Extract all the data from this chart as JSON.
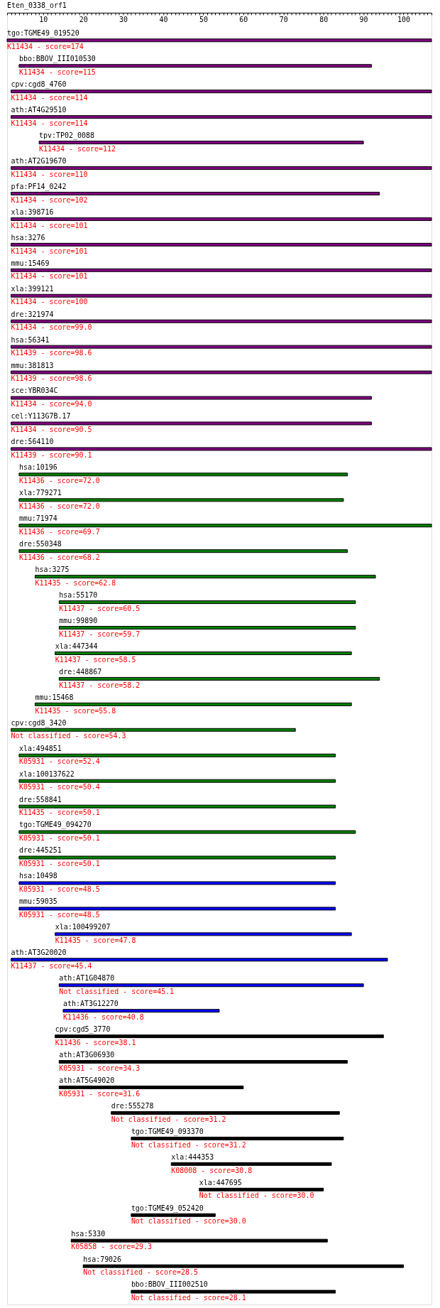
{
  "chart_data": {
    "type": "bar",
    "orientation": "horizontal",
    "title": "Eten_0338_orf1",
    "categories": [
      "tgo:TGME49_019520",
      "bbo:BBOV_III010530",
      "cpv:cgd8_4760",
      "ath:AT4G29510",
      "tpv:TP02_0088",
      "ath:AT2G19670",
      "pfa:PF14_0242",
      "xla:398716",
      "hsa:3276",
      "mmu:15469",
      "xla:399121",
      "dre:321974",
      "hsa:56341",
      "mmu:381813",
      "sce:YBR034C",
      "cel:Y113G7B.17",
      "dre:564110",
      "hsa:10196",
      "xla:779271",
      "mmu:71974",
      "dre:550348",
      "hsa:3275",
      "hsa:55170",
      "mmu:99890",
      "xla:447344",
      "dre:448867",
      "mmu:15468",
      "cpv:cgd8_3420",
      "xla:494851",
      "xla:100137622",
      "dre:558841",
      "tgo:TGME49_094270",
      "dre:445251",
      "hsa:10498",
      "mmu:59035",
      "xla:100499207",
      "ath:AT3G20020",
      "ath:AT1G04870",
      "ath:AT3G12270",
      "cpv:cgd5_3770",
      "ath:AT3G06930",
      "ath:AT5G49020",
      "dre:555278",
      "tgo:TGME49_093370",
      "xla:444353",
      "xla:447695",
      "tgo:TGME49_052420",
      "hsa:5330",
      "hsa:79026",
      "bbo:BBOV_III002510"
    ],
    "base": [
      1,
      4,
      2,
      2,
      9,
      2,
      2,
      2,
      2,
      2,
      2,
      2,
      2,
      2,
      2,
      2,
      2,
      4,
      4,
      4,
      4,
      8,
      14,
      14,
      13,
      14,
      8,
      2,
      4,
      4,
      4,
      4,
      4,
      4,
      4,
      13,
      2,
      14,
      15,
      13,
      14,
      14,
      27,
      32,
      42,
      49,
      32,
      17,
      20,
      32
    ],
    "values": [
      106,
      88,
      105,
      105,
      81,
      105,
      92,
      105,
      105,
      105,
      105,
      105,
      105,
      105,
      90,
      90,
      105,
      82,
      81,
      103,
      82,
      85,
      74,
      74,
      74,
      80,
      79,
      71,
      79,
      79,
      79,
      84,
      79,
      79,
      79,
      74,
      94,
      76,
      39,
      82,
      72,
      46,
      57,
      53,
      40,
      31,
      21,
      64,
      80,
      51
    ],
    "colors": [
      "#800080",
      "#800080",
      "#800080",
      "#800080",
      "#800080",
      "#800080",
      "#800080",
      "#800080",
      "#800080",
      "#800080",
      "#800080",
      "#800080",
      "#800080",
      "#800080",
      "#800080",
      "#800080",
      "#800080",
      "#008000",
      "#008000",
      "#008000",
      "#008000",
      "#008000",
      "#008000",
      "#008000",
      "#008000",
      "#008000",
      "#008000",
      "#008000",
      "#008000",
      "#008000",
      "#008000",
      "#008000",
      "#008000",
      "#0000ff",
      "#0000ff",
      "#0000ff",
      "#0000ff",
      "#0000ff",
      "#0000ff",
      "#000000",
      "#000000",
      "#000000",
      "#000000",
      "#000000",
      "#000000",
      "#000000",
      "#000000",
      "#000000",
      "#000000",
      "#000000"
    ],
    "xlim": [
      1,
      107
    ],
    "xticks": [
      {
        "value": 1,
        "label": null
      },
      {
        "value": 2,
        "label": null
      },
      {
        "value": 3,
        "label": null
      },
      {
        "value": 4,
        "label": null
      },
      {
        "value": 5,
        "label": null
      },
      {
        "value": 6,
        "label": null
      },
      {
        "value": 7,
        "label": null
      },
      {
        "value": 8,
        "label": null
      },
      {
        "value": 9,
        "label": null
      },
      10,
      {
        "value": 11,
        "label": null
      },
      {
        "value": 12,
        "label": null
      },
      {
        "value": 13,
        "label": null
      },
      {
        "value": 14,
        "label": null
      },
      {
        "value": 15,
        "label": null
      },
      {
        "value": 16,
        "label": null
      },
      {
        "value": 17,
        "label": null
      },
      {
        "value": 18,
        "label": null
      },
      {
        "value": 19,
        "label": null
      },
      20,
      {
        "value": 21,
        "label": null
      },
      {
        "value": 22,
        "label": null
      },
      {
        "value": 23,
        "label": null
      },
      {
        "value": 24,
        "label": null
      },
      {
        "value": 25,
        "label": null
      },
      {
        "value": 26,
        "label": null
      },
      {
        "value": 27,
        "label": null
      },
      {
        "value": 28,
        "label": null
      },
      {
        "value": 29,
        "label": null
      },
      30,
      {
        "value": 31,
        "label": null
      },
      {
        "value": 32,
        "label": null
      },
      {
        "value": 33,
        "label": null
      },
      {
        "value": 34,
        "label": null
      },
      {
        "value": 35,
        "label": null
      },
      {
        "value": 36,
        "label": null
      },
      {
        "value": 37,
        "label": null
      },
      {
        "value": 38,
        "label": null
      },
      {
        "value": 39,
        "label": null
      },
      40,
      {
        "value": 41,
        "label": null
      },
      {
        "value": 42,
        "label": null
      },
      {
        "value": 43,
        "label": null
      },
      {
        "value": 44,
        "label": null
      },
      {
        "value": 45,
        "label": null
      },
      {
        "value": 46,
        "label": null
      },
      {
        "value": 47,
        "label": null
      },
      {
        "value": 48,
        "label": null
      },
      {
        "value": 49,
        "label": null
      },
      50,
      {
        "value": 51,
        "label": null
      },
      {
        "value": 52,
        "label": null
      },
      {
        "value": 53,
        "label": null
      },
      {
        "value": 54,
        "label": null
      },
      {
        "value": 55,
        "label": null
      },
      {
        "value": 56,
        "label": null
      },
      {
        "value": 57,
        "label": null
      },
      {
        "value": 58,
        "label": null
      },
      {
        "value": 59,
        "label": null
      },
      60,
      {
        "value": 61,
        "label": null
      },
      {
        "value": 62,
        "label": null
      },
      {
        "value": 63,
        "label": null
      },
      {
        "value": 64,
        "label": null
      },
      {
        "value": 65,
        "label": null
      },
      {
        "value": 66,
        "label": null
      },
      {
        "value": 67,
        "label": null
      },
      {
        "value": 68,
        "label": null
      },
      {
        "value": 69,
        "label": null
      },
      70,
      {
        "value": 71,
        "label": null
      },
      {
        "value": 72,
        "label": null
      },
      {
        "value": 73,
        "label": null
      },
      {
        "value": 74,
        "label": null
      },
      {
        "value": 75,
        "label": null
      },
      {
        "value": 76,
        "label": null
      },
      {
        "value": 77,
        "label": null
      },
      {
        "value": 78,
        "label": null
      },
      {
        "value": 79,
        "label": null
      },
      80,
      {
        "value": 81,
        "label": null
      },
      {
        "value": 82,
        "label": null
      },
      {
        "value": 83,
        "label": null
      },
      {
        "value": 84,
        "label": null
      },
      {
        "value": 85,
        "label": null
      },
      {
        "value": 86,
        "label": null
      },
      {
        "value": 87,
        "label": null
      },
      {
        "value": 88,
        "label": null
      },
      {
        "value": 89,
        "label": null
      },
      90,
      {
        "value": 91,
        "label": null
      },
      {
        "value": 92,
        "label": null
      },
      {
        "value": 93,
        "label": null
      },
      {
        "value": 94,
        "label": null
      },
      {
        "value": 95,
        "label": null
      },
      {
        "value": 96,
        "label": null
      },
      {
        "value": 97,
        "label": null
      },
      {
        "value": 98,
        "label": null
      },
      {
        "value": 99,
        "label": null
      },
      100,
      {
        "value": 101,
        "label": null
      },
      {
        "value": 102,
        "label": null
      },
      {
        "value": 103,
        "label": null
      },
      {
        "value": 104,
        "label": null
      },
      {
        "value": 105,
        "label": null
      },
      {
        "value": 106,
        "label": null
      },
      {
        "value": 107,
        "label": null
      }
    ],
    "annotations": [
      "K11434 - score=174",
      "K11434 - score=115",
      "K11434 - score=114",
      "K11434 - score=114",
      "K11434 - score=112",
      "K11434 - score=110",
      "K11434 - score=102",
      "K11434 - score=101",
      "K11434 - score=101",
      "K11434 - score=101",
      "K11434 - score=100",
      "K11434 - score=99.0",
      "K11439 - score=98.6",
      "K11439 - score=98.6",
      "K11434 - score=94.0",
      "K11434 - score=90.5",
      "K11439 - score=90.1",
      "K11436 - score=72.0",
      "K11436 - score=72.0",
      "K11436 - score=69.7",
      "K11436 - score=68.2",
      "K11435 - score=62.8",
      "K11437 - score=60.5",
      "K11437 - score=59.7",
      "K11437 - score=58.5",
      "K11437 - score=58.2",
      "K11435 - score=55.8",
      "Not classified - score=54.3",
      "K05931 - score=52.4",
      "K05931 - score=50.4",
      "K11435 - score=50.1",
      "K05931 - score=50.1",
      "K05931 - score=50.1",
      "K05931 - score=48.5",
      "K05931 - score=48.5",
      "K11435 - score=47.8",
      "K11437 - score=45.4",
      "Not classified - score=45.1",
      "K11436 - score=40.8",
      "K11436 - score=38.1",
      "K05931 - score=34.3",
      "K05931 - score=31.6",
      "Not classified - score=31.2",
      "Not classified - score=31.2",
      "K08008 - score=30.8",
      "Not classified - score=30.0",
      "Not classified - score=30.0",
      "K05858 - score=29.3",
      "Not classified - score=28.5",
      "Not classified - score=28.1"
    ]
  }
}
